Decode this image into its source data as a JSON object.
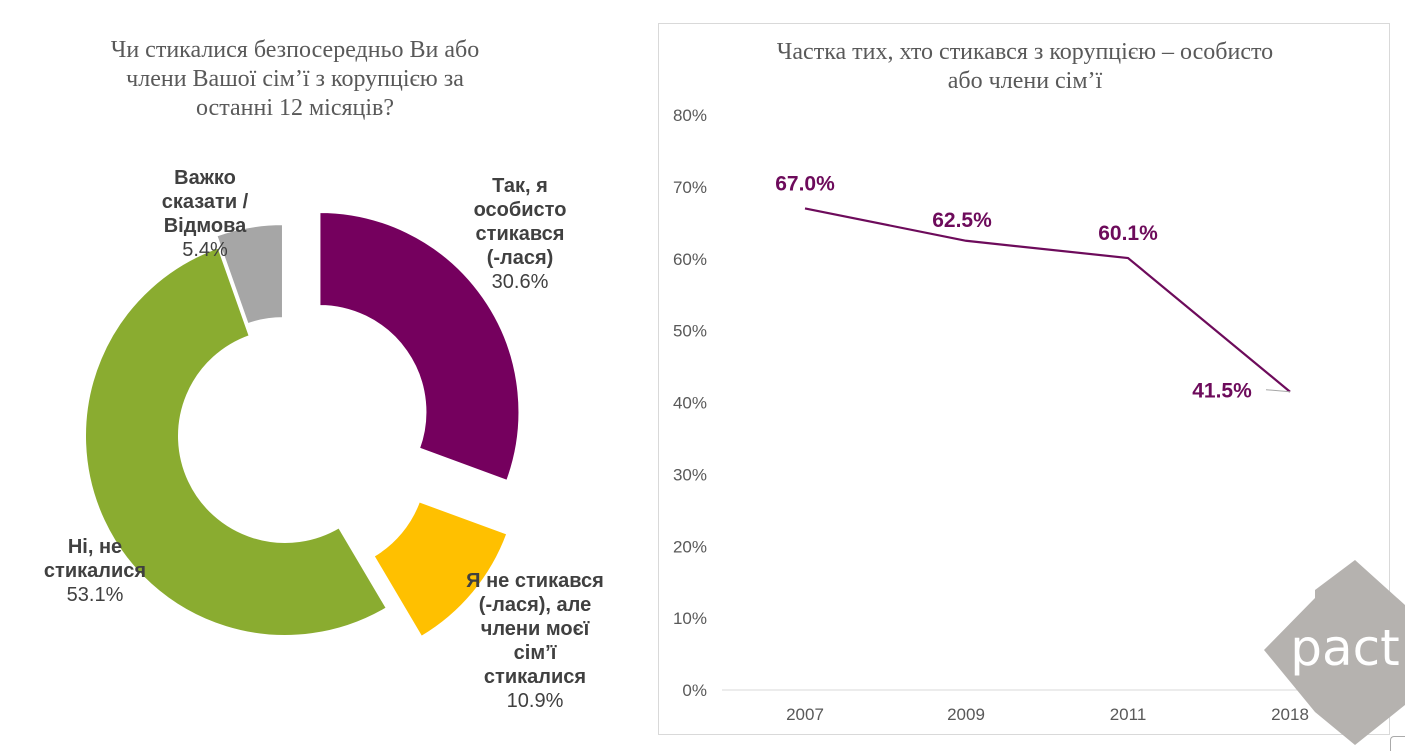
{
  "chart_data": [
    {
      "type": "pie",
      "variant": "donut",
      "title": "Чи стикалися безпосередньо Ви або\nчлени Вашої сім’ї з корупцією за\nостанні 12 місяців?",
      "slices": [
        {
          "label": "Так, я\nособисто\nстикався\n(-лася)",
          "value": 30.6,
          "value_label": "30.6%",
          "color": "#75005e"
        },
        {
          "label": "Я не стикався\n(-лася), але\nчлени моєї\nсім’ї\nстикалися",
          "value": 10.9,
          "value_label": "10.9%",
          "color": "#ffc000"
        },
        {
          "label": "Ні, не\nстикалися",
          "value": 53.1,
          "value_label": "53.1%",
          "color": "#8aac30"
        },
        {
          "label": "Важко\nсказати /\nВідмова",
          "value": 5.4,
          "value_label": "5.4%",
          "color": "#a6a6a6"
        }
      ]
    },
    {
      "type": "line",
      "title": "Частка тих, хто стикався з корупцією – особисто\nабо члени сім’ї",
      "categories": [
        "2007",
        "2009",
        "2011",
        "2018"
      ],
      "series": [
        {
          "values": [
            67.0,
            62.5,
            60.1,
            41.5
          ],
          "data_labels": [
            "67.0%",
            "62.5%",
            "60.1%",
            "41.5%"
          ],
          "color": "#6d0b5b"
        }
      ],
      "ylim": [
        0,
        80
      ],
      "yticks": [
        "0%",
        "10%",
        "20%",
        "30%",
        "40%",
        "50%",
        "60%",
        "70%",
        "80%"
      ],
      "grid": false,
      "legend": "none"
    }
  ],
  "logo": {
    "text": "pact",
    "color": "#b5b2af"
  }
}
